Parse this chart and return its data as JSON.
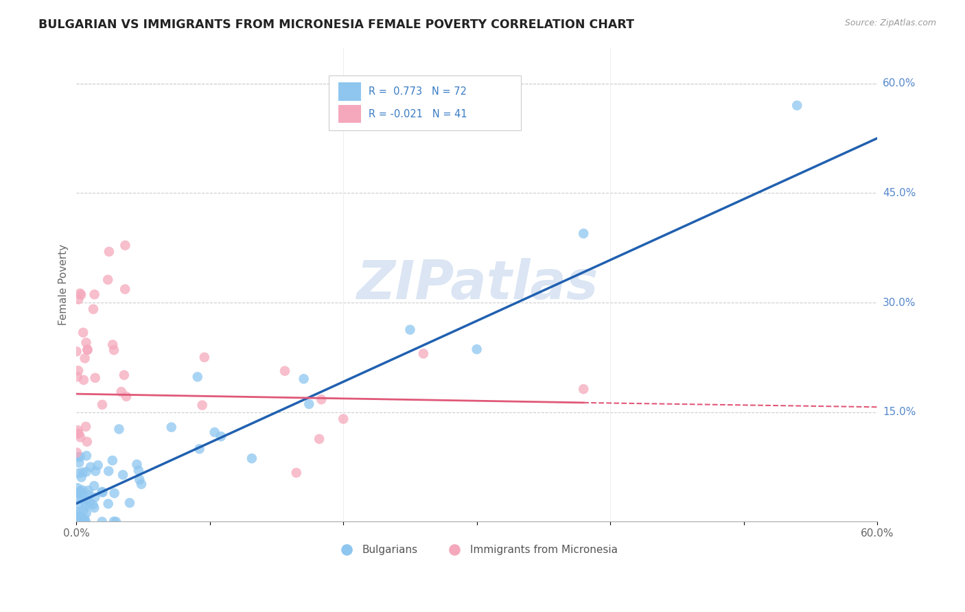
{
  "title": "BULGARIAN VS IMMIGRANTS FROM MICRONESIA FEMALE POVERTY CORRELATION CHART",
  "source": "Source: ZipAtlas.com",
  "ylabel": "Female Poverty",
  "xlim": [
    0.0,
    0.6
  ],
  "ylim": [
    0.0,
    0.65
  ],
  "xtick_vals": [
    0.0,
    0.1,
    0.2,
    0.3,
    0.4,
    0.5,
    0.6
  ],
  "xticklabels": [
    "0.0%",
    "",
    "",
    "",
    "",
    "",
    "60.0%"
  ],
  "ytick_right_labels": [
    "60.0%",
    "45.0%",
    "30.0%",
    "15.0%"
  ],
  "ytick_right_values": [
    0.6,
    0.45,
    0.3,
    0.15
  ],
  "r_bulgarian": 0.773,
  "n_bulgarian": 72,
  "r_micronesia": -0.021,
  "n_micronesia": 41,
  "color_bulgarian": "#8EC6F0",
  "color_micronesia": "#F5A8BC",
  "line_color_bulgarian": "#2060B0",
  "line_color_micronesia": "#E05878",
  "watermark": "ZIPatlas",
  "legend_r_color": "#3A7CC5",
  "bulgarian_line": [
    0.0,
    0.02,
    0.6
  ],
  "bulgarian_line_y": [
    0.025,
    0.06,
    0.525
  ],
  "micronesia_line": [
    0.0,
    0.6
  ],
  "micronesia_line_y": [
    0.175,
    0.155
  ]
}
